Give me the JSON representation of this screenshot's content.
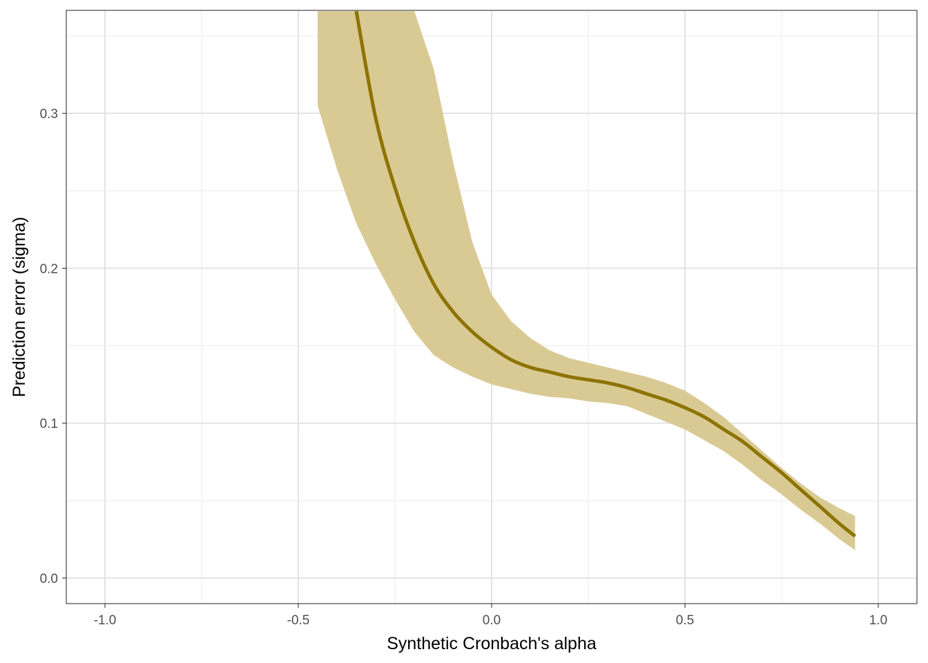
{
  "chart_data": {
    "type": "line",
    "title": "",
    "xlabel": "Synthetic Cronbach's alpha",
    "ylabel": "Prediction error (sigma)",
    "xlim": [
      -1.1,
      1.1
    ],
    "ylim": [
      -0.0165,
      0.3665
    ],
    "grid": true,
    "x_ticks": [
      -1.0,
      -0.5,
      0.0,
      0.5,
      1.0
    ],
    "x_tick_labels": [
      "-1.0",
      "-0.5",
      "0.0",
      "0.5",
      "1.0"
    ],
    "y_ticks": [
      0.0,
      0.1,
      0.2,
      0.3
    ],
    "y_tick_labels": [
      "0.0",
      "0.1",
      "0.2",
      "0.3"
    ],
    "colors": {
      "line": "#8c7300",
      "ribbon": "#d9ca94"
    },
    "series": [
      {
        "x": [
          -0.35,
          -0.3,
          -0.25,
          -0.2,
          -0.15,
          -0.1,
          -0.05,
          0.0,
          0.05,
          0.1,
          0.15,
          0.2,
          0.25,
          0.3,
          0.35,
          0.4,
          0.45,
          0.5,
          0.55,
          0.6,
          0.65,
          0.7,
          0.75,
          0.8,
          0.85,
          0.9,
          0.94
        ],
        "y": [
          0.366,
          0.297,
          0.252,
          0.217,
          0.19,
          0.172,
          0.159,
          0.149,
          0.141,
          0.136,
          0.133,
          0.13,
          0.128,
          0.126,
          0.123,
          0.119,
          0.115,
          0.11,
          0.104,
          0.096,
          0.088,
          0.078,
          0.068,
          0.057,
          0.046,
          0.035,
          0.027
        ]
      }
    ],
    "ribbon": {
      "x": [
        -0.45,
        -0.4,
        -0.35,
        -0.3,
        -0.25,
        -0.2,
        -0.15,
        -0.1,
        -0.05,
        0.0,
        0.05,
        0.1,
        0.15,
        0.2,
        0.25,
        0.3,
        0.35,
        0.4,
        0.45,
        0.5,
        0.55,
        0.6,
        0.65,
        0.7,
        0.75,
        0.8,
        0.85,
        0.9,
        0.94
      ],
      "lower": [
        0.305,
        0.264,
        0.229,
        0.203,
        0.18,
        0.159,
        0.144,
        0.136,
        0.13,
        0.125,
        0.122,
        0.119,
        0.117,
        0.116,
        0.114,
        0.113,
        0.111,
        0.106,
        0.101,
        0.096,
        0.089,
        0.082,
        0.073,
        0.063,
        0.054,
        0.044,
        0.035,
        0.025,
        0.018
      ],
      "upper": [
        0.366,
        0.366,
        0.366,
        0.366,
        0.366,
        0.366,
        0.329,
        0.269,
        0.217,
        0.183,
        0.166,
        0.155,
        0.147,
        0.142,
        0.139,
        0.136,
        0.133,
        0.13,
        0.126,
        0.121,
        0.113,
        0.104,
        0.093,
        0.082,
        0.071,
        0.061,
        0.052,
        0.045,
        0.04
      ]
    }
  }
}
